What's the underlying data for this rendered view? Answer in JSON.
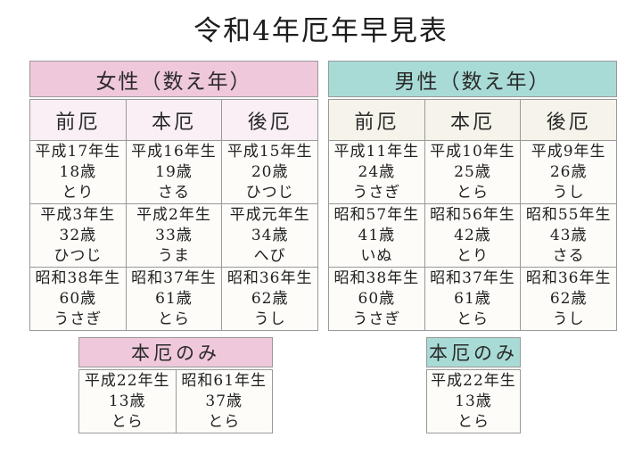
{
  "page": {
    "title": "令和4年厄年早見表"
  },
  "colors": {
    "female_header_bg": "#efc8dc",
    "female_subheader_bg": "#f9eff5",
    "male_header_bg": "#a9dbd6",
    "male_subheader_bg": "#f6f4ea",
    "cell_bg": "#fdfcf9",
    "border": "#999999",
    "text": "#222222"
  },
  "female_table": {
    "title": "女性（数え年）",
    "columns": [
      "前厄",
      "本厄",
      "後厄"
    ],
    "rows": [
      [
        "平成17年生\n18歳\nとり",
        "平成16年生\n19歳\nさる",
        "平成15年生\n20歳\nひつじ"
      ],
      [
        "平成3年生\n32歳\nひつじ",
        "平成2年生\n33歳\nうま",
        "平成元年生\n34歳\nへび"
      ],
      [
        "昭和38年生\n60歳\nうさぎ",
        "昭和37年生\n61歳\nとら",
        "昭和36年生\n62歳\nうし"
      ]
    ]
  },
  "male_table": {
    "title": "男性（数え年）",
    "columns": [
      "前厄",
      "本厄",
      "後厄"
    ],
    "rows": [
      [
        "平成11年生\n24歳\nうさぎ",
        "平成10年生\n25歳\nとら",
        "平成9年生\n26歳\nうし"
      ],
      [
        "昭和57年生\n41歳\nいぬ",
        "昭和56年生\n42歳\nとり",
        "昭和55年生\n43歳\nさる"
      ],
      [
        "昭和38年生\n60歳\nうさぎ",
        "昭和37年生\n61歳\nとら",
        "昭和36年生\n62歳\nうし"
      ]
    ]
  },
  "female_honyaku_table": {
    "title": "本厄のみ",
    "cells": [
      "平成22年生\n13歳\nとら",
      "昭和61年生\n37歳\nとら"
    ]
  },
  "male_honyaku_table": {
    "title": "本厄のみ",
    "cells": [
      "平成22年生\n13歳\nとら"
    ]
  }
}
